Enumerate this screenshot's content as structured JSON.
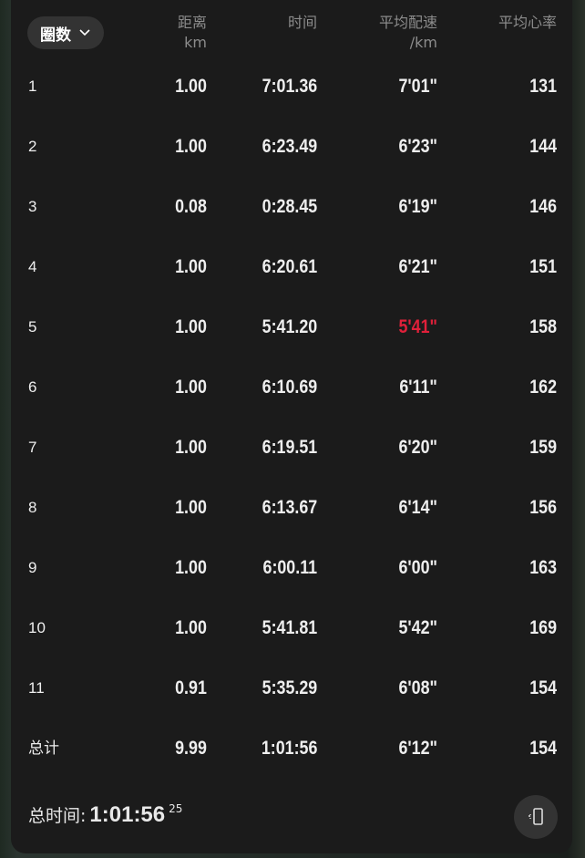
{
  "header": {
    "lap_selector": "圈数",
    "col_distance": "距离",
    "col_distance_unit": "km",
    "col_time": "时间",
    "col_pace": "平均配速",
    "col_pace_unit": "/km",
    "col_hr": "平均心率"
  },
  "rows": [
    {
      "lap": "1",
      "distance": "1.00",
      "time": "7:01.36",
      "pace": "7'01\"",
      "hr": "131"
    },
    {
      "lap": "2",
      "distance": "1.00",
      "time": "6:23.49",
      "pace": "6'23\"",
      "hr": "144"
    },
    {
      "lap": "3",
      "distance": "0.08",
      "time": "0:28.45",
      "pace": "6'19\"",
      "hr": "146"
    },
    {
      "lap": "4",
      "distance": "1.00",
      "time": "6:20.61",
      "pace": "6'21\"",
      "hr": "151"
    },
    {
      "lap": "5",
      "distance": "1.00",
      "time": "5:41.20",
      "pace": "5'41\"",
      "hr": "158",
      "fastest": true
    },
    {
      "lap": "6",
      "distance": "1.00",
      "time": "6:10.69",
      "pace": "6'11\"",
      "hr": "162"
    },
    {
      "lap": "7",
      "distance": "1.00",
      "time": "6:19.51",
      "pace": "6'20\"",
      "hr": "159"
    },
    {
      "lap": "8",
      "distance": "1.00",
      "time": "6:13.67",
      "pace": "6'14\"",
      "hr": "156"
    },
    {
      "lap": "9",
      "distance": "1.00",
      "time": "6:00.11",
      "pace": "6'00\"",
      "hr": "163"
    },
    {
      "lap": "10",
      "distance": "1.00",
      "time": "5:41.81",
      "pace": "5'42\"",
      "hr": "169"
    },
    {
      "lap": "11",
      "distance": "0.91",
      "time": "5:35.29",
      "pace": "6'08\"",
      "hr": "154"
    },
    {
      "lap": "总计",
      "distance": "9.99",
      "time": "1:01:56",
      "pace": "6'12\"",
      "hr": "154"
    }
  ],
  "footer": {
    "label": "总时间:",
    "value": "1:01:56",
    "fraction": "25"
  },
  "colors": {
    "highlight": "#e0203a",
    "panel": "#1b1b1b"
  },
  "icons": {
    "lap_dropdown": "chevron-down-icon",
    "rotate": "rotate-screen-icon"
  }
}
